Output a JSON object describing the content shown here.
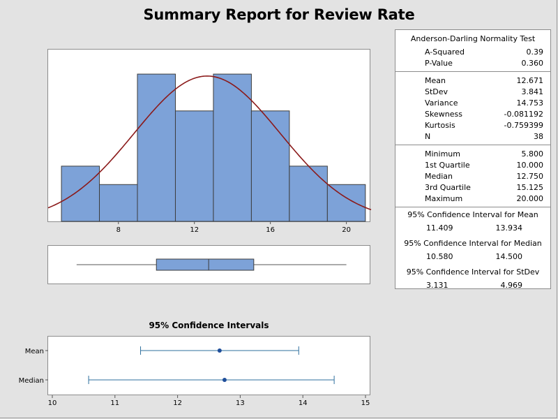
{
  "title": "Summary Report for Review Rate",
  "colors": {
    "bar_fill": "#7da2d8",
    "bar_stroke": "#3c3c3c",
    "normal_curve": "#8b1a1a",
    "ci_line": "#2e6f9e",
    "ci_point": "#1f4e9a"
  },
  "chart_data": [
    {
      "type": "histogram",
      "title": "",
      "bins": [
        {
          "from": 5,
          "to": 7,
          "count": 3
        },
        {
          "from": 7,
          "to": 9,
          "count": 2
        },
        {
          "from": 9,
          "to": 11,
          "count": 8
        },
        {
          "from": 11,
          "to": 13,
          "count": 6
        },
        {
          "from": 13,
          "to": 15,
          "count": 8
        },
        {
          "from": 15,
          "to": 17,
          "count": 6
        },
        {
          "from": 17,
          "to": 19,
          "count": 3
        },
        {
          "from": 19,
          "to": 21,
          "count": 2
        }
      ],
      "normal_fit": {
        "mean": 12.671,
        "stdev": 3.841
      },
      "xlim": [
        4.3,
        21.3
      ],
      "ylim": [
        0,
        8.8
      ],
      "xticks": [
        8,
        12,
        16,
        20
      ]
    },
    {
      "type": "boxplot",
      "min": 5.8,
      "q1": 10.0,
      "median": 12.75,
      "q3": 15.125,
      "max": 20.0,
      "xlim": [
        4.3,
        21.3
      ]
    },
    {
      "type": "interval",
      "title": "95% Confidence Intervals",
      "categories": [
        "Mean",
        "Median"
      ],
      "estimates": [
        12.671,
        12.75
      ],
      "lower": [
        11.409,
        10.58
      ],
      "upper": [
        13.934,
        14.5
      ],
      "xlim": [
        10,
        15
      ],
      "xticks": [
        10,
        11,
        12,
        13,
        14,
        15
      ]
    }
  ],
  "stats": {
    "normality": {
      "title": "Anderson-Darling Normality Test",
      "rows": [
        {
          "label": "A-Squared",
          "value": "0.39"
        },
        {
          "label": "P-Value",
          "value": "0.360"
        }
      ]
    },
    "moments": {
      "rows": [
        {
          "label": "Mean",
          "value": "12.671"
        },
        {
          "label": "StDev",
          "value": "3.841"
        },
        {
          "label": "Variance",
          "value": "14.753"
        },
        {
          "label": "Skewness",
          "value": "-0.081192"
        },
        {
          "label": "Kurtosis",
          "value": "-0.759399"
        },
        {
          "label": "N",
          "value": "38"
        }
      ]
    },
    "quantiles": {
      "rows": [
        {
          "label": "Minimum",
          "value": "5.800"
        },
        {
          "label": "1st Quartile",
          "value": "10.000"
        },
        {
          "label": "Median",
          "value": "12.750"
        },
        {
          "label": "3rd Quartile",
          "value": "15.125"
        },
        {
          "label": "Maximum",
          "value": "20.000"
        }
      ]
    },
    "intervals": [
      {
        "title": "95% Confidence Interval for Mean",
        "low": "11.409",
        "high": "13.934"
      },
      {
        "title": "95% Confidence Interval for Median",
        "low": "10.580",
        "high": "14.500"
      },
      {
        "title": "95% Confidence Interval for StDev",
        "low": "3.131",
        "high": "4.969"
      }
    ]
  }
}
